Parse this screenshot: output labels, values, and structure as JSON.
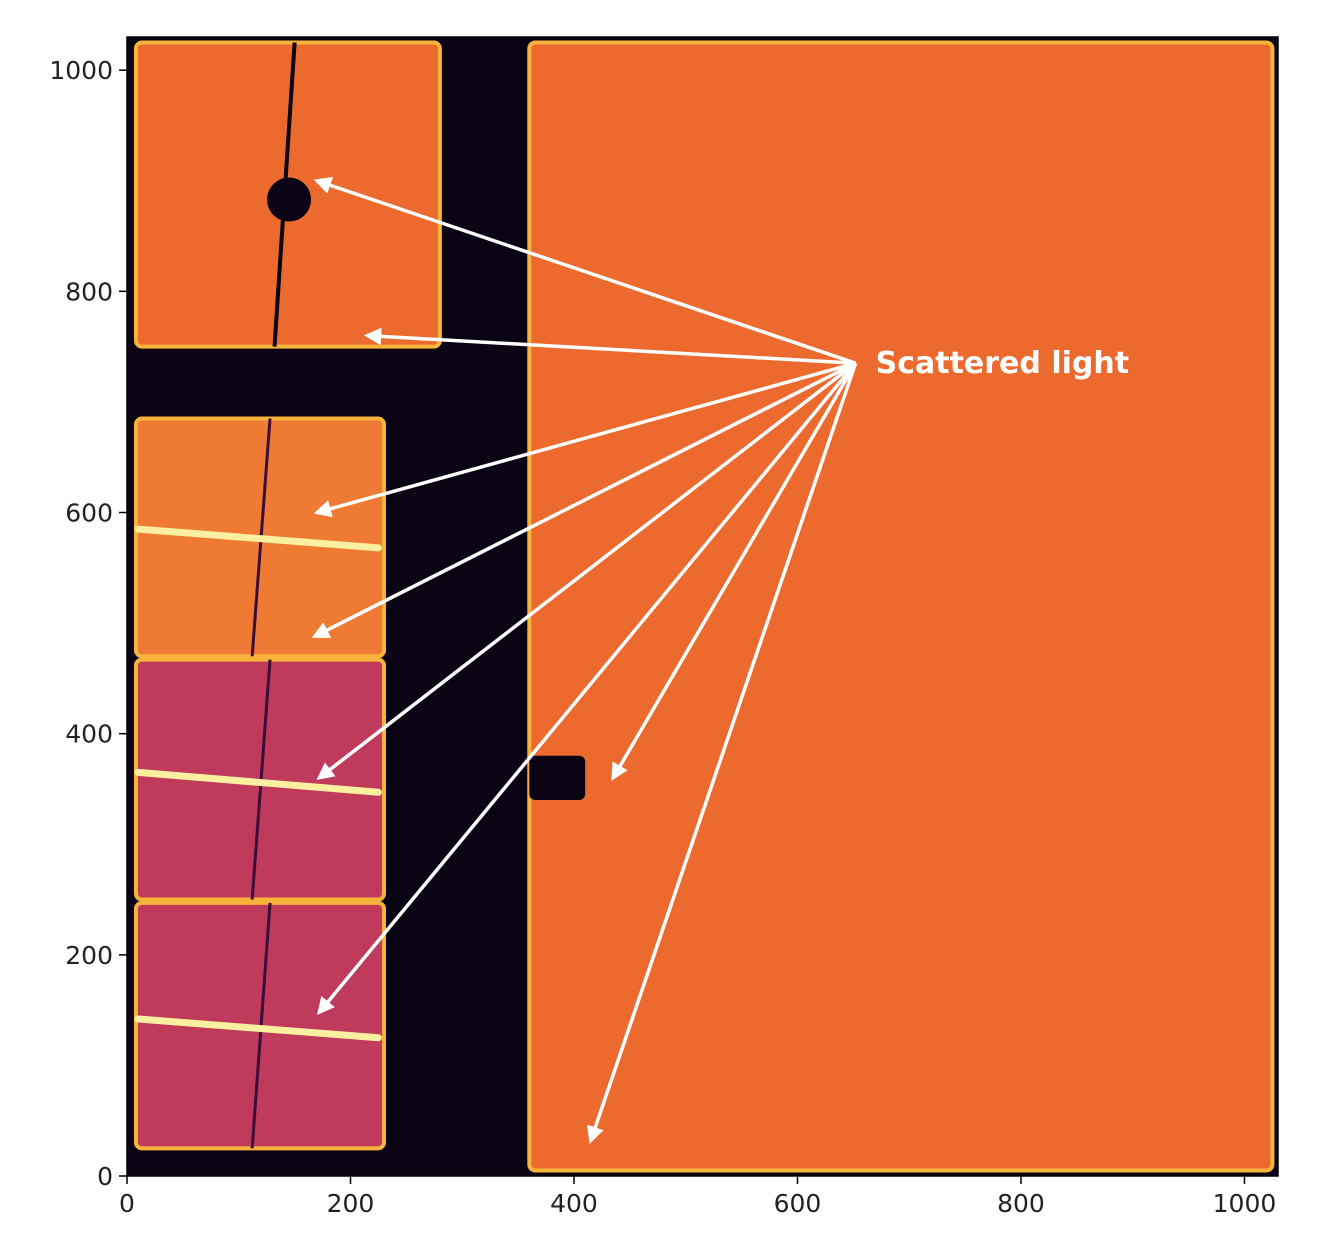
{
  "chart_data": {
    "type": "heatmap",
    "title": "",
    "xlabel": "",
    "ylabel": "",
    "xlim": [
      0,
      1030
    ],
    "ylim": [
      0,
      1030
    ],
    "x_ticks": [
      0,
      200,
      400,
      600,
      800,
      1000
    ],
    "y_ticks": [
      0,
      200,
      400,
      600,
      800,
      1000
    ],
    "x_tick_labels": [
      "0",
      "200",
      "400",
      "600",
      "800",
      "1000"
    ],
    "y_tick_labels": [
      "0",
      "200",
      "400",
      "600",
      "800",
      "1000"
    ],
    "grid": false,
    "colormap": "inferno",
    "colors": {
      "background": "#0b0414",
      "bright_orange": "#ec6a2e",
      "orange_mid": "#ee7a34",
      "magenta_low": "#c03a5c",
      "magenta_mid": "#cf4a52",
      "saturated": "#fcf0a0",
      "edge_glow": "#f8b43a",
      "annotation": "#ffffff"
    },
    "regions": [
      {
        "name": "right-detector",
        "x": [
          360,
          1025
        ],
        "y": [
          5,
          1025
        ],
        "level": "high"
      },
      {
        "name": "top-left-panel",
        "x": [
          8,
          280
        ],
        "y": [
          750,
          1025
        ],
        "level": "high"
      },
      {
        "name": "upper-left-panel",
        "x": [
          8,
          230
        ],
        "y": [
          470,
          685
        ],
        "level": "medium-high"
      },
      {
        "name": "middle-left-panel",
        "x": [
          8,
          230
        ],
        "y": [
          250,
          467
        ],
        "level": "medium"
      },
      {
        "name": "lower-left-panel",
        "x": [
          8,
          230
        ],
        "y": [
          25,
          247
        ],
        "level": "medium"
      },
      {
        "name": "bottom-right-notch",
        "x": [
          360,
          410
        ],
        "y": [
          340,
          380
        ],
        "level": "background"
      }
    ],
    "saturated_streaks": [
      {
        "y_start": 585,
        "y_end": 568,
        "x": [
          10,
          225
        ]
      },
      {
        "y_start": 365,
        "y_end": 347,
        "x": [
          10,
          225
        ]
      },
      {
        "y_start": 142,
        "y_end": 125,
        "x": [
          10,
          225
        ]
      }
    ],
    "annotations": [
      {
        "text": "Scattered light",
        "origin": [
          652,
          735
        ],
        "targets": [
          [
            170,
            900
          ],
          [
            215,
            760
          ],
          [
            170,
            600
          ],
          [
            168,
            488
          ],
          [
            172,
            360
          ],
          [
            172,
            148
          ],
          [
            435,
            360
          ],
          [
            415,
            32
          ]
        ]
      }
    ]
  }
}
